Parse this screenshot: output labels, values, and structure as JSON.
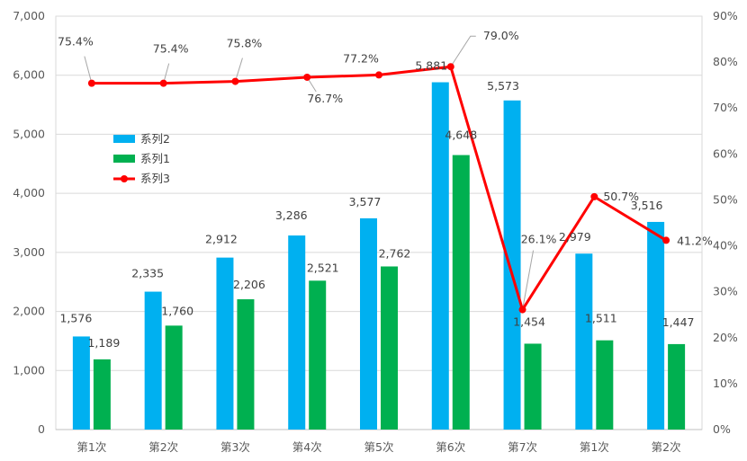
{
  "chart_data": {
    "type": "bar",
    "categories": [
      "第1次",
      "第2次",
      "第3次",
      "第4次",
      "第5次",
      "第6次",
      "第7次",
      "第1次",
      "第2次"
    ],
    "series": [
      {
        "name": "系列2",
        "type": "bar",
        "axis": "left",
        "color": "#00B0F0",
        "values": [
          1576,
          2335,
          2912,
          3286,
          3577,
          5881,
          5573,
          2979,
          3516
        ],
        "labels": [
          "1,576",
          "2,335",
          "2,912",
          "3,286",
          "3,577",
          "5,881",
          "5,573",
          "2,979",
          "3,516"
        ]
      },
      {
        "name": "系列1",
        "type": "bar",
        "axis": "left",
        "color": "#00B050",
        "values": [
          1189,
          1760,
          2206,
          2521,
          2762,
          4648,
          1454,
          1511,
          1447
        ],
        "labels": [
          "1,189",
          "1,760",
          "2,206",
          "2,521",
          "2,762",
          "4,648",
          "1,454",
          "1,511",
          "1,447"
        ]
      },
      {
        "name": "系列3",
        "type": "line",
        "axis": "right",
        "color": "#FF0000",
        "values": [
          75.4,
          75.4,
          75.8,
          76.7,
          77.2,
          79.0,
          26.1,
          50.7,
          41.2
        ],
        "labels": [
          "75.4%",
          "75.4%",
          "75.8%",
          "76.7%",
          "77.2%",
          "79.0%",
          "26.1%",
          "50.7%",
          "41.2%"
        ]
      }
    ],
    "y_left": {
      "min": 0,
      "max": 7000,
      "step": 1000,
      "tick_labels": [
        "0",
        "1,000",
        "2,000",
        "3,000",
        "4,000",
        "5,000",
        "6,000",
        "7,000"
      ]
    },
    "y_right": {
      "min": 0,
      "max": 90,
      "step": 10,
      "tick_labels": [
        "0%",
        "10%",
        "20%",
        "30%",
        "40%",
        "50%",
        "60%",
        "70%",
        "80%",
        "90%"
      ]
    },
    "grid": true,
    "legend_position": "left-inside",
    "title": "",
    "xlabel": "",
    "ylabel": ""
  }
}
